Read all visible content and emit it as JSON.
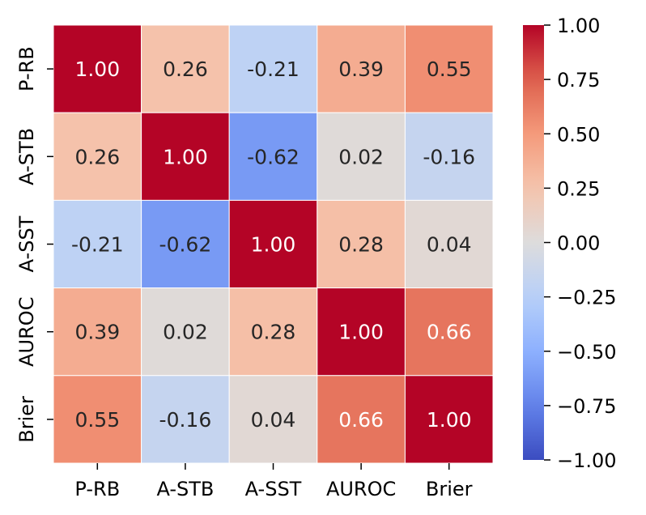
{
  "chart_data": {
    "type": "heatmap",
    "title": "",
    "xlabel": "",
    "ylabel": "",
    "row_labels": [
      "P-RB",
      "A-STB",
      "A-SST",
      "AUROC",
      "Brier"
    ],
    "col_labels": [
      "P-RB",
      "A-STB",
      "A-SST",
      "AUROC",
      "Brier"
    ],
    "values": [
      [
        1.0,
        0.26,
        -0.21,
        0.39,
        0.55
      ],
      [
        0.26,
        1.0,
        -0.62,
        0.02,
        -0.16
      ],
      [
        -0.21,
        -0.62,
        1.0,
        0.28,
        0.04
      ],
      [
        0.39,
        0.02,
        0.28,
        1.0,
        0.66
      ],
      [
        0.55,
        -0.16,
        0.04,
        0.66,
        1.0
      ]
    ],
    "annotations": [
      [
        "1.00",
        "0.26",
        "-0.21",
        "0.39",
        "0.55"
      ],
      [
        "0.26",
        "1.00",
        "-0.62",
        "0.02",
        "-0.16"
      ],
      [
        "-0.21",
        "-0.62",
        "1.00",
        "0.28",
        "0.04"
      ],
      [
        "0.39",
        "0.02",
        "0.28",
        "1.00",
        "0.66"
      ],
      [
        "0.55",
        "-0.16",
        "0.04",
        "0.66",
        "1.00"
      ]
    ],
    "colormap": "coolwarm",
    "vmin": -1.0,
    "vmax": 1.0,
    "colorbar_ticks": [
      "1.00",
      "0.75",
      "0.50",
      "0.25",
      "0.00",
      "−0.25",
      "−0.50",
      "−0.75",
      "−1.00"
    ],
    "colorbar_tick_values": [
      1.0,
      0.75,
      0.5,
      0.25,
      0.0,
      -0.25,
      -0.5,
      -0.75,
      -1.0
    ],
    "colors": {
      "low": "#3b4cc0",
      "mid": "#dddcdc",
      "high": "#b40426",
      "text_dark": "#262626",
      "text_light": "#ffffff",
      "gridline": "#ffffff"
    }
  }
}
